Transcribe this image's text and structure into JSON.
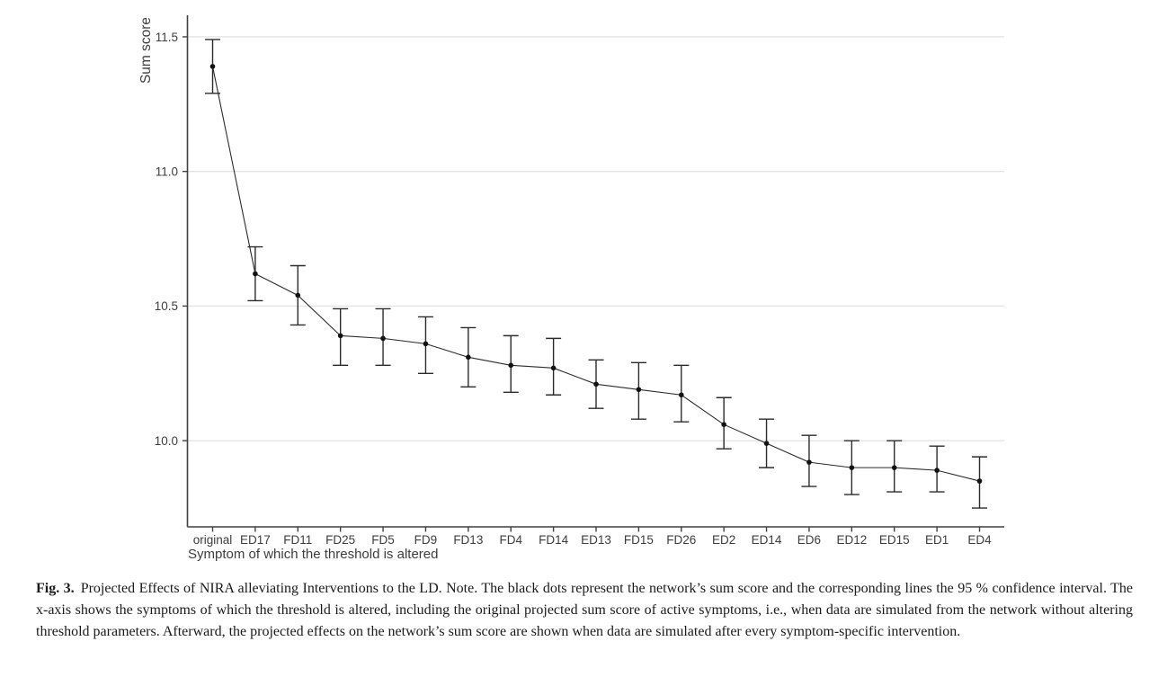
{
  "figure": {
    "caption_label": "Fig. 3.",
    "caption_text": "Projected Effects of NIRA alleviating Interventions to the LD. Note. The black dots represent the network’s sum score and the corresponding lines the 95 % confidence interval. The x-axis shows the symptoms of which the threshold is altered, including the original projected sum score of active symptoms, i.e., when data are simulated from the network without altering threshold parameters. Afterward, the projected effects on the network’s sum score are shown when data are simulated after every symptom-specific intervention."
  },
  "chart_data": {
    "type": "line",
    "title": "",
    "xlabel": "Symptom of which the threshold is altered",
    "ylabel": "Sum score",
    "categories": [
      "original",
      "ED17",
      "FD11",
      "FD25",
      "FD5",
      "FD9",
      "FD13",
      "FD4",
      "FD14",
      "ED13",
      "FD15",
      "FD26",
      "ED2",
      "ED14",
      "ED6",
      "ED12",
      "ED15",
      "ED1",
      "ED4"
    ],
    "series": [
      {
        "name": "Projected sum score",
        "values": [
          11.39,
          10.62,
          10.54,
          10.39,
          10.38,
          10.36,
          10.31,
          10.28,
          10.27,
          10.21,
          10.19,
          10.17,
          10.06,
          9.99,
          9.92,
          9.9,
          9.9,
          9.89,
          9.85
        ],
        "ci_low": [
          11.29,
          10.52,
          10.43,
          10.28,
          10.28,
          10.25,
          10.2,
          10.18,
          10.17,
          10.12,
          10.08,
          10.07,
          9.97,
          9.9,
          9.83,
          9.8,
          9.81,
          9.81,
          9.75
        ],
        "ci_high": [
          11.49,
          10.72,
          10.65,
          10.49,
          10.49,
          10.46,
          10.42,
          10.39,
          10.38,
          10.3,
          10.29,
          10.28,
          10.16,
          10.08,
          10.02,
          10.0,
          10.0,
          9.98,
          9.94
        ]
      }
    ],
    "error_bars": "95% confidence interval",
    "yticks": [
      11.5,
      11.0,
      10.5,
      10.0
    ],
    "ytick_labels": [
      "11.5",
      "11.0",
      "10.5",
      "10.0"
    ],
    "ylim": [
      9.68,
      11.58
    ],
    "grid": "horizontal major gridlines only",
    "legend": "none",
    "colors": {
      "point": "#121212",
      "line": "#2b2b2b",
      "error_bar": "#2b2b2b",
      "grid": "#e4e4e4",
      "axis": "#404040",
      "text": "#3d3d3d"
    }
  }
}
